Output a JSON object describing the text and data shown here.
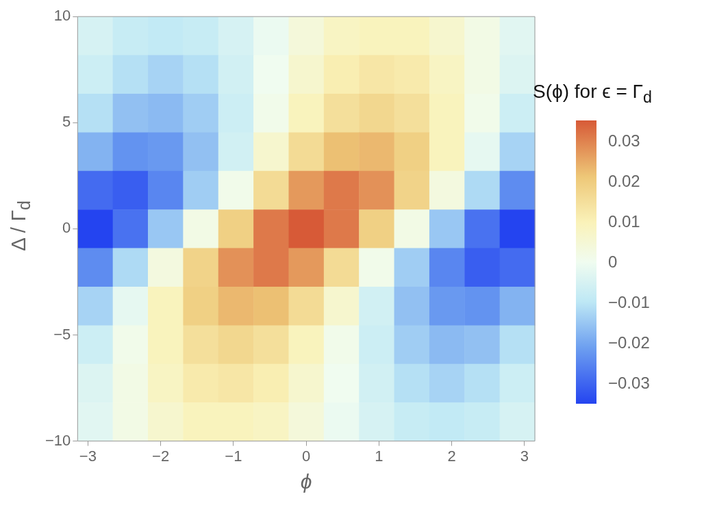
{
  "chart_data": {
    "type": "heatmap",
    "xlabel": "ϕ",
    "ylabel": "Δ / Γ$_{d}$",
    "clabel": "S(ϕ) for ϵ = Γ$_{d}$",
    "cells": [
      [
        -0.005,
        -0.008,
        -0.009,
        -0.008,
        -0.005,
        -0.001,
        0.004,
        0.008,
        0.009,
        0.009,
        0.006,
        0.002,
        -0.003
      ],
      [
        -0.007,
        -0.011,
        -0.013,
        -0.011,
        -0.006,
        0,
        0.006,
        0.011,
        0.013,
        0.012,
        0.008,
        0.002,
        -0.004
      ],
      [
        -0.011,
        -0.016,
        -0.017,
        -0.014,
        -0.007,
        0.001,
        0.009,
        0.015,
        0.017,
        0.015,
        0.009,
        0.001,
        -0.007
      ],
      [
        -0.018,
        -0.023,
        -0.022,
        -0.016,
        -0.006,
        0.006,
        0.016,
        0.022,
        0.023,
        0.019,
        0.009,
        -0.002,
        -0.013
      ],
      [
        -0.029,
        -0.031,
        -0.025,
        -0.014,
        0.001,
        0.016,
        0.027,
        0.031,
        0.028,
        0.018,
        0.003,
        -0.012,
        -0.024
      ],
      [
        -0.035,
        -0.028,
        -0.015,
        0.002,
        0.019,
        0.031,
        0.035,
        0.031,
        0.019,
        0.002,
        -0.015,
        -0.028,
        -0.035
      ],
      [
        -0.024,
        -0.012,
        0.003,
        0.018,
        0.028,
        0.031,
        0.027,
        0.016,
        0.001,
        -0.014,
        -0.025,
        -0.031,
        -0.029
      ],
      [
        -0.013,
        -0.002,
        0.009,
        0.019,
        0.023,
        0.022,
        0.016,
        0.006,
        -0.006,
        -0.016,
        -0.022,
        -0.023,
        -0.018
      ],
      [
        -0.007,
        0.001,
        0.009,
        0.015,
        0.017,
        0.015,
        0.009,
        0.001,
        -0.007,
        -0.014,
        -0.017,
        -0.016,
        -0.011
      ],
      [
        -0.004,
        0.002,
        0.008,
        0.012,
        0.013,
        0.011,
        0.006,
        0,
        -0.006,
        -0.011,
        -0.013,
        -0.011,
        -0.007
      ],
      [
        -0.003,
        0.002,
        0.006,
        0.009,
        0.009,
        0.008,
        0.004,
        -0.001,
        -0.005,
        -0.008,
        -0.009,
        -0.008,
        -0.005
      ]
    ],
    "xlim": [
      -3.14159,
      3.14159
    ],
    "ylim": [
      -10,
      10
    ],
    "xticks": [
      {
        "value": -3,
        "label": "−3"
      },
      {
        "value": -2,
        "label": "−2"
      },
      {
        "value": -1,
        "label": "−1"
      },
      0,
      1,
      2,
      3
    ],
    "yticks": [
      {
        "value": -10,
        "label": "−10"
      },
      {
        "value": -5,
        "label": "−5"
      },
      0,
      5,
      10
    ],
    "clim": [
      -0.035,
      0.035
    ],
    "cticks": [
      {
        "value": -0.03,
        "label": "−0.03"
      },
      {
        "value": -0.02,
        "label": "−0.02"
      },
      {
        "value": -0.01,
        "label": "−0.01"
      },
      0,
      0.01,
      0.02,
      0.03
    ]
  }
}
